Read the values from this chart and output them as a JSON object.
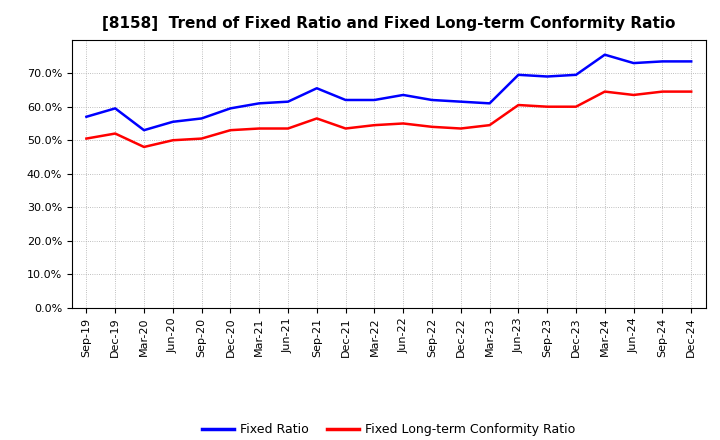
{
  "title": "[8158]  Trend of Fixed Ratio and Fixed Long-term Conformity Ratio",
  "labels": [
    "Sep-19",
    "Dec-19",
    "Mar-20",
    "Jun-20",
    "Sep-20",
    "Dec-20",
    "Mar-21",
    "Jun-21",
    "Sep-21",
    "Dec-21",
    "Mar-22",
    "Jun-22",
    "Sep-22",
    "Dec-22",
    "Mar-23",
    "Jun-23",
    "Sep-23",
    "Dec-23",
    "Mar-24",
    "Jun-24",
    "Sep-24",
    "Dec-24"
  ],
  "fixed_ratio": [
    57.0,
    59.5,
    53.0,
    55.5,
    56.5,
    59.5,
    61.0,
    61.5,
    65.5,
    62.0,
    62.0,
    63.5,
    62.0,
    61.5,
    61.0,
    69.5,
    69.0,
    69.5,
    75.5,
    73.0,
    73.5,
    73.5
  ],
  "fixed_lt_ratio": [
    50.5,
    52.0,
    48.0,
    50.0,
    50.5,
    53.0,
    53.5,
    53.5,
    56.5,
    53.5,
    54.5,
    55.0,
    54.0,
    53.5,
    54.5,
    60.5,
    60.0,
    60.0,
    64.5,
    63.5,
    64.5,
    64.5
  ],
  "fixed_ratio_color": "#0000FF",
  "fixed_lt_ratio_color": "#FF0000",
  "ylim": [
    0,
    80
  ],
  "yticks": [
    0,
    10,
    20,
    30,
    40,
    50,
    60,
    70
  ],
  "background_color": "#FFFFFF",
  "grid_color": "#AAAAAA",
  "legend_fixed": "Fixed Ratio",
  "legend_lt": "Fixed Long-term Conformity Ratio",
  "title_fontsize": 11,
  "tick_fontsize": 8,
  "legend_fontsize": 9
}
